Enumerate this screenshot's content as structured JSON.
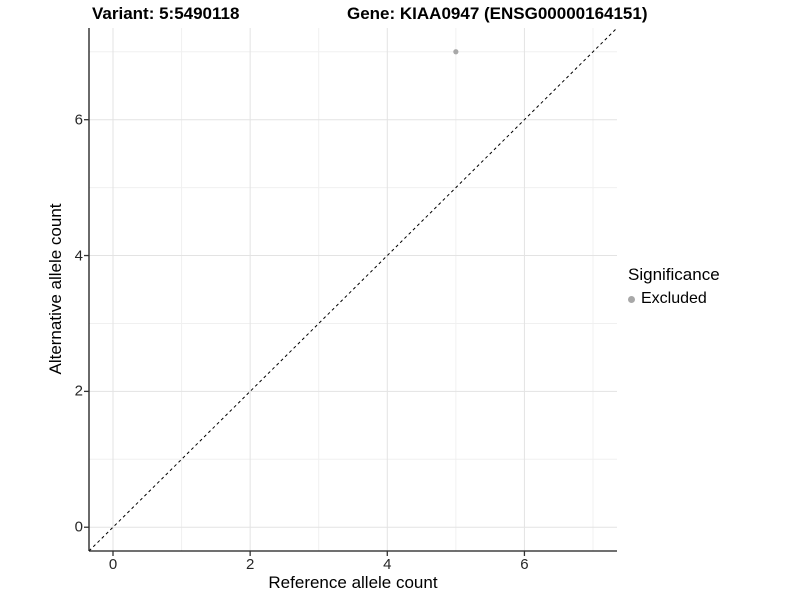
{
  "titles": {
    "variant": "Variant: 5:5490118",
    "gene": "Gene: KIAA0947 (ENSG00000164151)"
  },
  "chart_data": {
    "type": "scatter",
    "title": "Variant: 5:5490118   Gene: KIAA0947 (ENSG00000164151)",
    "xlabel": "Reference allele count",
    "ylabel": "Alternative allele count",
    "xlim": [
      -0.35,
      7.35
    ],
    "ylim": [
      -0.35,
      7.35
    ],
    "x_major_ticks": [
      0,
      2,
      4,
      6
    ],
    "y_major_ticks": [
      0,
      2,
      4,
      6
    ],
    "x_minor_ticks": [
      1,
      3,
      5,
      7
    ],
    "y_minor_ticks": [
      1,
      3,
      5,
      7
    ],
    "grid": true,
    "series": [
      {
        "name": "Excluded",
        "color": "#a8a8a8",
        "points": [
          {
            "x": 5,
            "y": 7
          }
        ]
      }
    ],
    "reference_line": {
      "type": "identity",
      "style": "dashed",
      "color": "#000000"
    },
    "legend": {
      "title": "Significance",
      "position": "right",
      "items": [
        {
          "label": "Excluded",
          "color": "#a8a8a8"
        }
      ]
    },
    "style": {
      "background": "#ffffff",
      "grid_major": "#e3e3e3",
      "grid_minor": "#f0f0f0",
      "axis_line": "#1a1a1a",
      "tick_mark": "#333333",
      "tick_label": "#262626",
      "point_radius": 2.6,
      "legend_dot": "#a8a8a8"
    }
  }
}
